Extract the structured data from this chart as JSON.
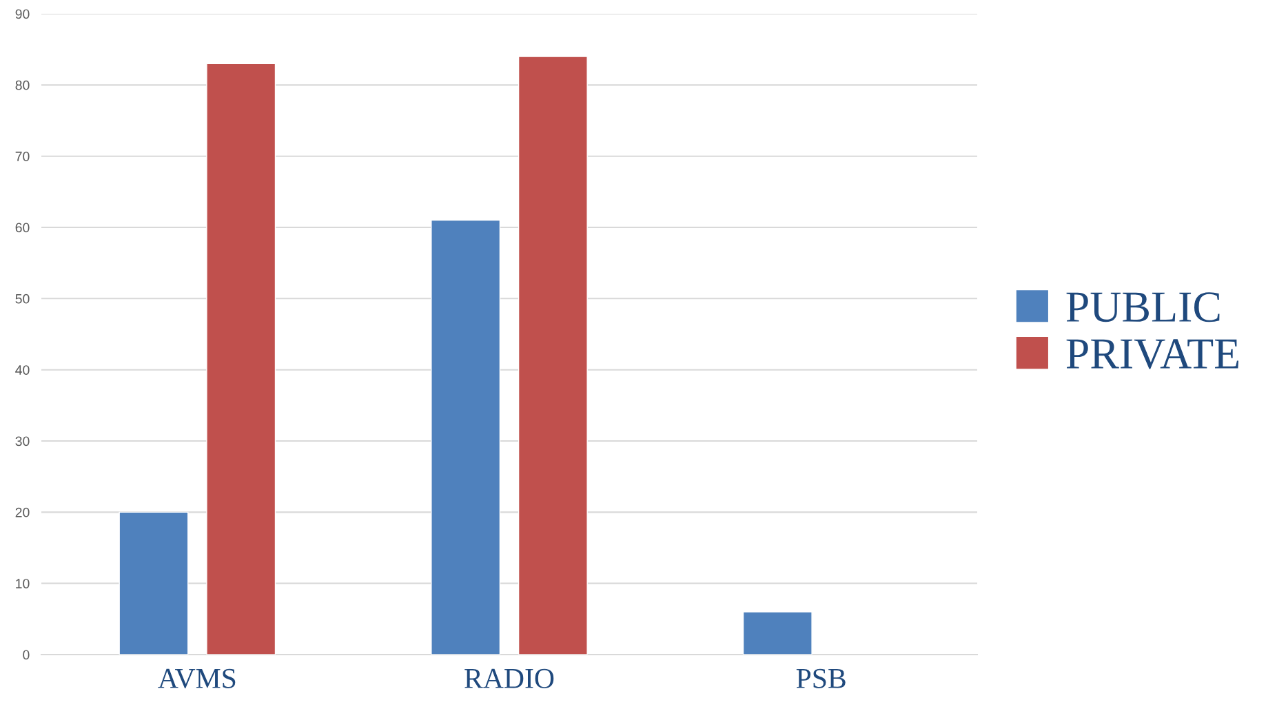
{
  "chart_data": {
    "type": "bar",
    "categories": [
      "AVMS",
      "RADIO",
      "PSB"
    ],
    "series": [
      {
        "name": "PUBLIC",
        "color": "#4f81bd",
        "values": [
          20,
          61,
          6
        ]
      },
      {
        "name": "PRIVATE",
        "color": "#c0504d",
        "values": [
          83,
          84,
          null
        ]
      }
    ],
    "ylim": [
      0,
      90
    ],
    "yticks": [
      0,
      10,
      20,
      30,
      40,
      50,
      60,
      70,
      80,
      90
    ],
    "grid": "y",
    "legend": "right"
  }
}
